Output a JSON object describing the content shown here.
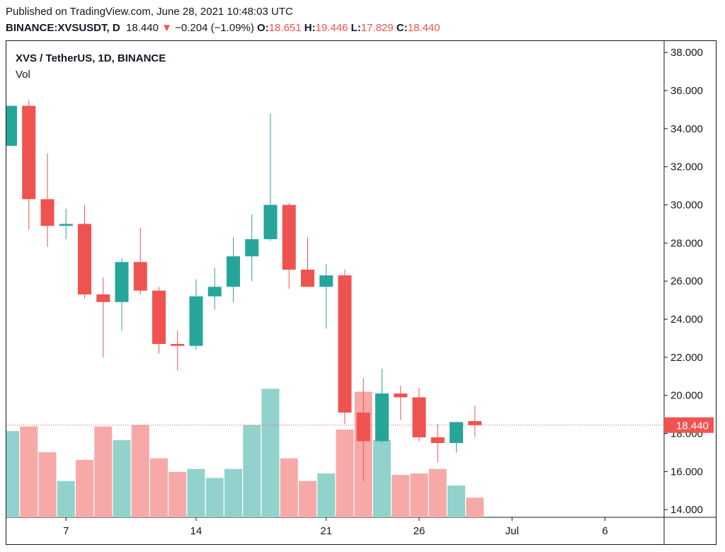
{
  "header": {
    "published": "Published on TradingView.com, June 28, 2021 10:48:03 UTC",
    "symbol": "BINANCE:XVSUSDT, D",
    "last": "18.440",
    "change_arrow": "▼",
    "change": "−0.204 (−1.09%)",
    "o_label": "O:",
    "o_value": "18.651",
    "h_label": "H:",
    "h_value": "19.446",
    "l_label": "L:",
    "l_value": "17.829",
    "c_label": "C:",
    "c_value": "18.440"
  },
  "legend": {
    "pair": "XVS / TetherUS, 1D, BINANCE",
    "vol": "Vol"
  },
  "colors": {
    "up": "#26a69a",
    "down": "#ef5350",
    "up_vol": "#92d2cc",
    "down_vol": "#f7a9a7",
    "grid": "#e0e3eb",
    "text": "#131722"
  },
  "chart_data": {
    "type": "candlestick",
    "title": "XVS / TetherUS, 1D, BINANCE",
    "ylim": [
      13.6,
      38.6
    ],
    "y_ticks": [
      "14.000",
      "16.000",
      "18.000",
      "20.000",
      "22.000",
      "24.000",
      "26.000",
      "28.000",
      "30.000",
      "32.000",
      "34.000",
      "36.000",
      "38.000"
    ],
    "x_ticks": [
      {
        "label": "7",
        "day": 7
      },
      {
        "label": "14",
        "day": 14
      },
      {
        "label": "21",
        "day": 21
      },
      {
        "label": "26",
        "day": 26
      },
      {
        "label": "Jul",
        "day": 31
      },
      {
        "label": "6",
        "day": 36
      }
    ],
    "last_price": "18.440",
    "last_price_value": 18.44,
    "candles": [
      {
        "date": "Jun 4",
        "o": 33.1,
        "h": 35.2,
        "l": 33.1,
        "c": 35.2
      },
      {
        "date": "Jun 5",
        "o": 35.2,
        "h": 35.5,
        "l": 28.7,
        "c": 30.3
      },
      {
        "date": "Jun 6",
        "o": 30.3,
        "h": 32.7,
        "l": 27.8,
        "c": 28.9
      },
      {
        "date": "Jun 7",
        "o": 28.9,
        "h": 29.8,
        "l": 28.2,
        "c": 29.0
      },
      {
        "date": "Jun 8",
        "o": 29.0,
        "h": 30.0,
        "l": 25.1,
        "c": 25.3
      },
      {
        "date": "Jun 9",
        "o": 25.3,
        "h": 26.2,
        "l": 22.0,
        "c": 24.9
      },
      {
        "date": "Jun 10",
        "o": 24.9,
        "h": 27.2,
        "l": 23.4,
        "c": 27.0
      },
      {
        "date": "Jun 11",
        "o": 27.0,
        "h": 28.8,
        "l": 25.3,
        "c": 25.5
      },
      {
        "date": "Jun 12",
        "o": 25.5,
        "h": 25.7,
        "l": 22.2,
        "c": 22.7
      },
      {
        "date": "Jun 13",
        "o": 22.7,
        "h": 23.4,
        "l": 21.3,
        "c": 22.6
      },
      {
        "date": "Jun 14",
        "o": 22.6,
        "h": 26.1,
        "l": 22.4,
        "c": 25.2
      },
      {
        "date": "Jun 15",
        "o": 25.2,
        "h": 26.7,
        "l": 24.5,
        "c": 25.7
      },
      {
        "date": "Jun 16",
        "o": 25.7,
        "h": 28.3,
        "l": 24.9,
        "c": 27.3
      },
      {
        "date": "Jun 17",
        "o": 27.3,
        "h": 29.5,
        "l": 26.0,
        "c": 28.2
      },
      {
        "date": "Jun 18",
        "o": 28.2,
        "h": 34.8,
        "l": 28.1,
        "c": 30.0
      },
      {
        "date": "Jun 19",
        "o": 30.0,
        "h": 30.1,
        "l": 25.6,
        "c": 26.6
      },
      {
        "date": "Jun 20",
        "o": 26.6,
        "h": 28.3,
        "l": 25.7,
        "c": 25.7
      },
      {
        "date": "Jun 21",
        "o": 25.7,
        "h": 26.9,
        "l": 23.5,
        "c": 26.3
      },
      {
        "date": "Jun 22",
        "o": 26.3,
        "h": 26.6,
        "l": 18.5,
        "c": 19.1
      },
      {
        "date": "Jun 23",
        "o": 19.1,
        "h": 20.9,
        "l": 15.5,
        "c": 17.6
      },
      {
        "date": "Jun 24",
        "o": 17.6,
        "h": 21.4,
        "l": 17.5,
        "c": 20.1
      },
      {
        "date": "Jun 25",
        "o": 20.1,
        "h": 20.5,
        "l": 18.7,
        "c": 19.9
      },
      {
        "date": "Jun 26",
        "o": 19.9,
        "h": 20.4,
        "l": 17.6,
        "c": 17.8
      },
      {
        "date": "Jun 27",
        "o": 17.8,
        "h": 18.5,
        "l": 16.5,
        "c": 17.5
      },
      {
        "date": "Jun 28",
        "o": 17.5,
        "h": 18.6,
        "l": 17.0,
        "c": 18.6
      },
      {
        "date": "Jun 29",
        "o": 18.651,
        "h": 19.446,
        "l": 17.829,
        "c": 18.44
      }
    ],
    "volume_relative": [
      0.57,
      0.6,
      0.43,
      0.24,
      0.38,
      0.6,
      0.51,
      0.61,
      0.39,
      0.3,
      0.32,
      0.26,
      0.32,
      0.61,
      0.85,
      0.39,
      0.24,
      0.29,
      0.58,
      0.83,
      0.51,
      0.28,
      0.29,
      0.32,
      0.21,
      0.13
    ]
  }
}
